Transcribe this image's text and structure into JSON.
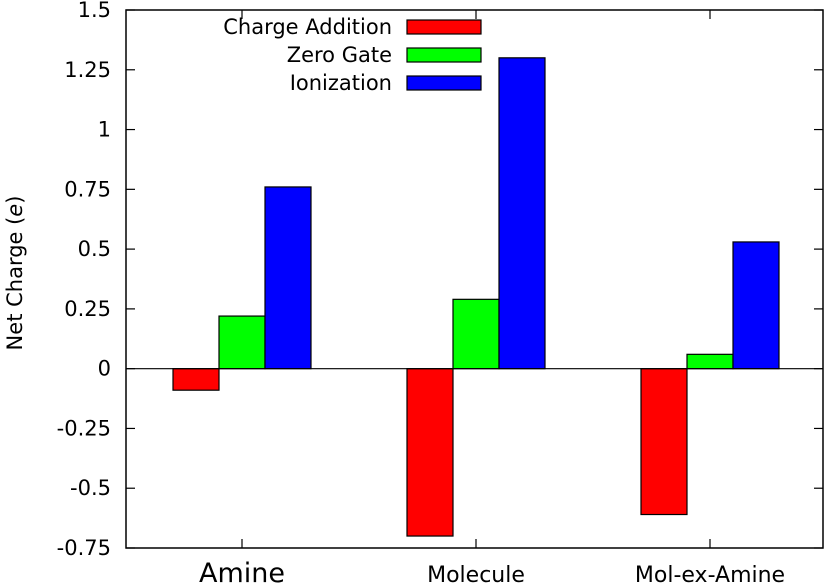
{
  "chart_data": {
    "type": "bar",
    "categories": [
      "Amine",
      "Molecule",
      "Mol-ex-Amine"
    ],
    "series": [
      {
        "name": "Charge Addition",
        "color": "#ff0000",
        "values": [
          -0.09,
          -0.7,
          -0.61
        ]
      },
      {
        "name": "Zero Gate",
        "color": "#00ff00",
        "values": [
          0.22,
          0.29,
          0.06
        ]
      },
      {
        "name": "Ionization",
        "color": "#0000ff",
        "values": [
          0.76,
          1.3,
          0.53
        ]
      }
    ],
    "ylabel": {
      "prefix": "Net Charge (",
      "unit": "e",
      "suffix": ")"
    },
    "ylim": [
      -0.75,
      1.5
    ],
    "yticks": [
      "-0.75",
      "-0.5",
      "-0.25",
      "0",
      "0.25",
      "0.5",
      "0.75",
      "1",
      "1.25",
      "1.5"
    ],
    "ytick_values": [
      -0.75,
      -0.5,
      -0.25,
      0,
      0.25,
      0.5,
      0.75,
      1,
      1.25,
      1.5
    ],
    "legend_position": "top-center",
    "grid": false
  }
}
